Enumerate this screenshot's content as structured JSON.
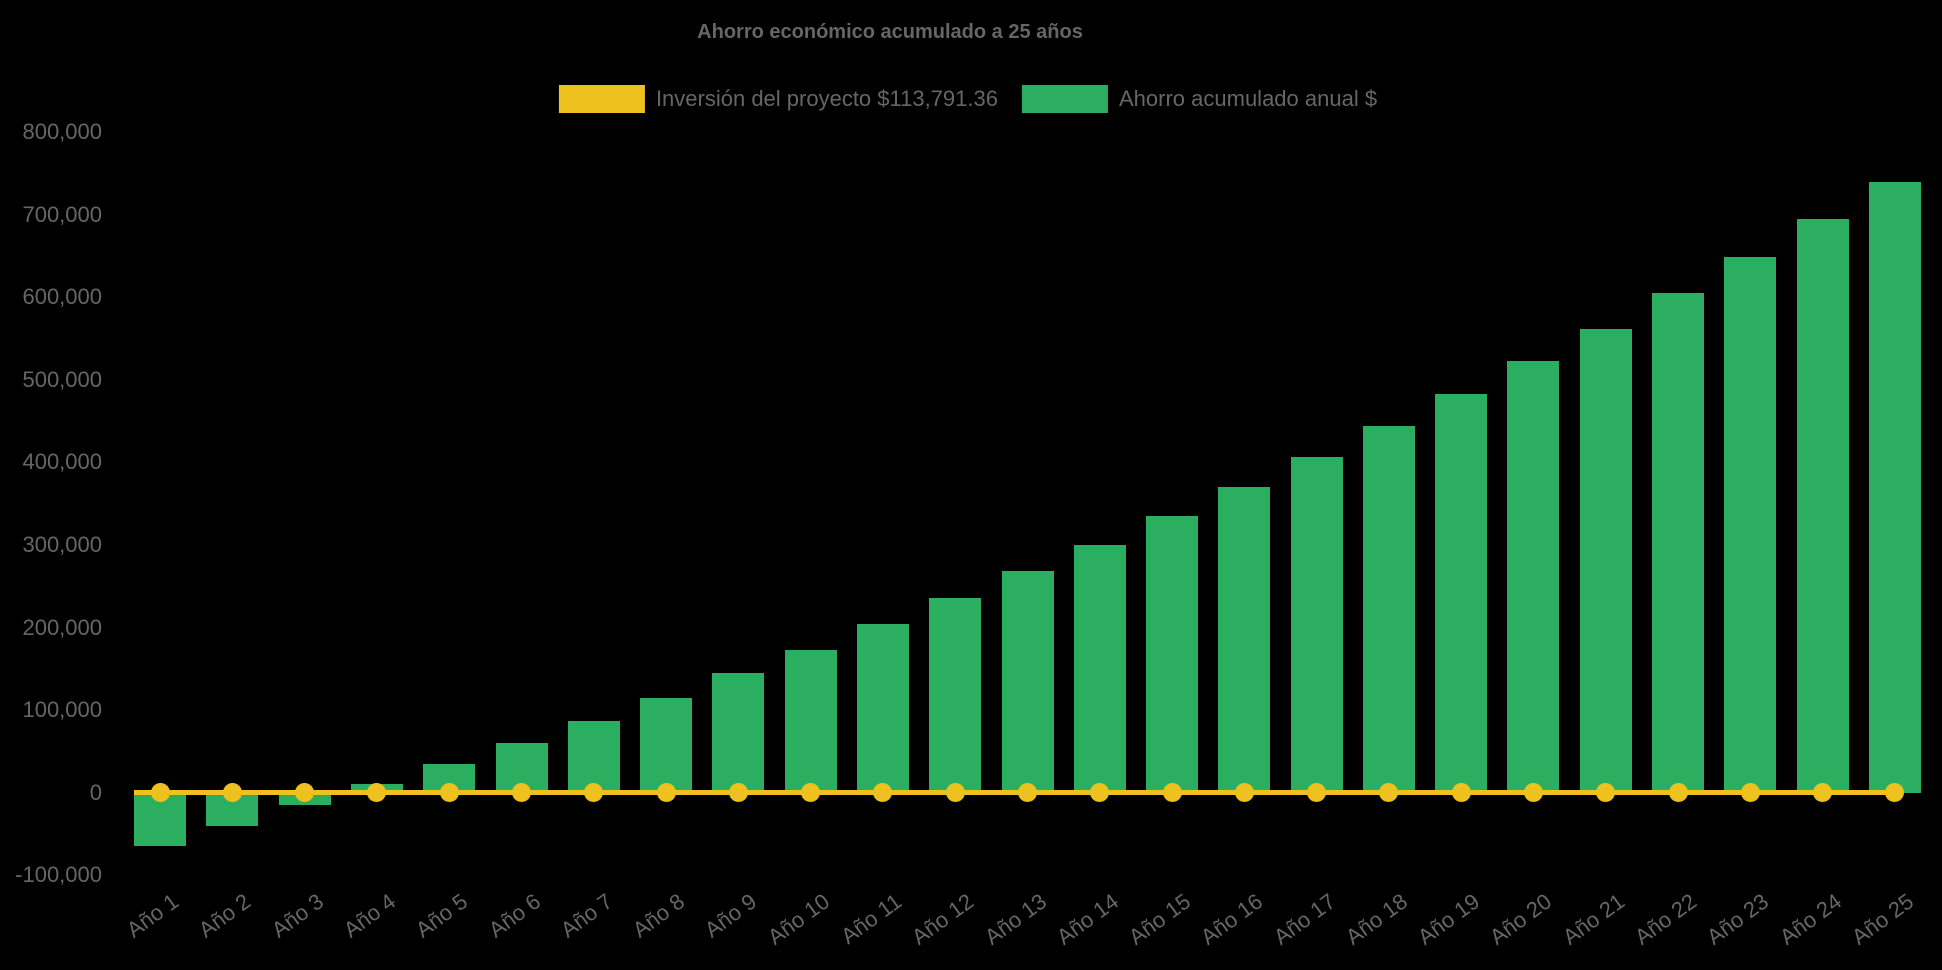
{
  "chart_data": {
    "type": "bar",
    "title": "Ahorro económico acumulado a 25 años",
    "categories": [
      "Año 1",
      "Año 2",
      "Año 3",
      "Año 4",
      "Año 5",
      "Año 6",
      "Año 7",
      "Año 8",
      "Año 9",
      "Año 10",
      "Año 11",
      "Año 12",
      "Año 13",
      "Año 14",
      "Año 15",
      "Año 16",
      "Año 17",
      "Año 18",
      "Año 19",
      "Año 20",
      "Año 21",
      "Año 22",
      "Año 23",
      "Año 24",
      "Año 25"
    ],
    "series": [
      {
        "name": "Inversión del proyecto $113,791.36",
        "type": "line",
        "marker": "circle",
        "color": "#EEC11E",
        "values": [
          0,
          0,
          0,
          0,
          0,
          0,
          0,
          0,
          0,
          0,
          0,
          0,
          0,
          0,
          0,
          0,
          0,
          0,
          0,
          0,
          0,
          0,
          0,
          0,
          0
        ]
      },
      {
        "name": "Ahorro acumulado anual $",
        "type": "bar",
        "color": "#2BAE60",
        "values": [
          -64500,
          -40500,
          -14500,
          10000,
          35000,
          60000,
          87000,
          114500,
          145000,
          173000,
          204000,
          236000,
          268500,
          300000,
          335000,
          370000,
          406500,
          444000,
          483000,
          523000,
          561500,
          605000,
          649000,
          695000,
          740000
        ]
      }
    ],
    "ylim": [
      -100000,
      800000
    ],
    "ytick_step": 100000,
    "yticks": [
      {
        "label": "800,000",
        "value": 800000
      },
      {
        "label": "700,000",
        "value": 700000
      },
      {
        "label": "600,000",
        "value": 600000
      },
      {
        "label": "500,000",
        "value": 500000
      },
      {
        "label": "400,000",
        "value": 400000
      },
      {
        "label": "300,000",
        "value": 300000
      },
      {
        "label": "200,000",
        "value": 200000
      },
      {
        "label": "100,000",
        "value": 100000
      },
      {
        "label": "0",
        "value": 0
      },
      {
        "label": "-100,000",
        "value": -100000
      }
    ],
    "grid": false,
    "legend_position": "top",
    "x_label_rotation_deg": -36,
    "background_color": "#000000",
    "text_color": "#666666"
  }
}
